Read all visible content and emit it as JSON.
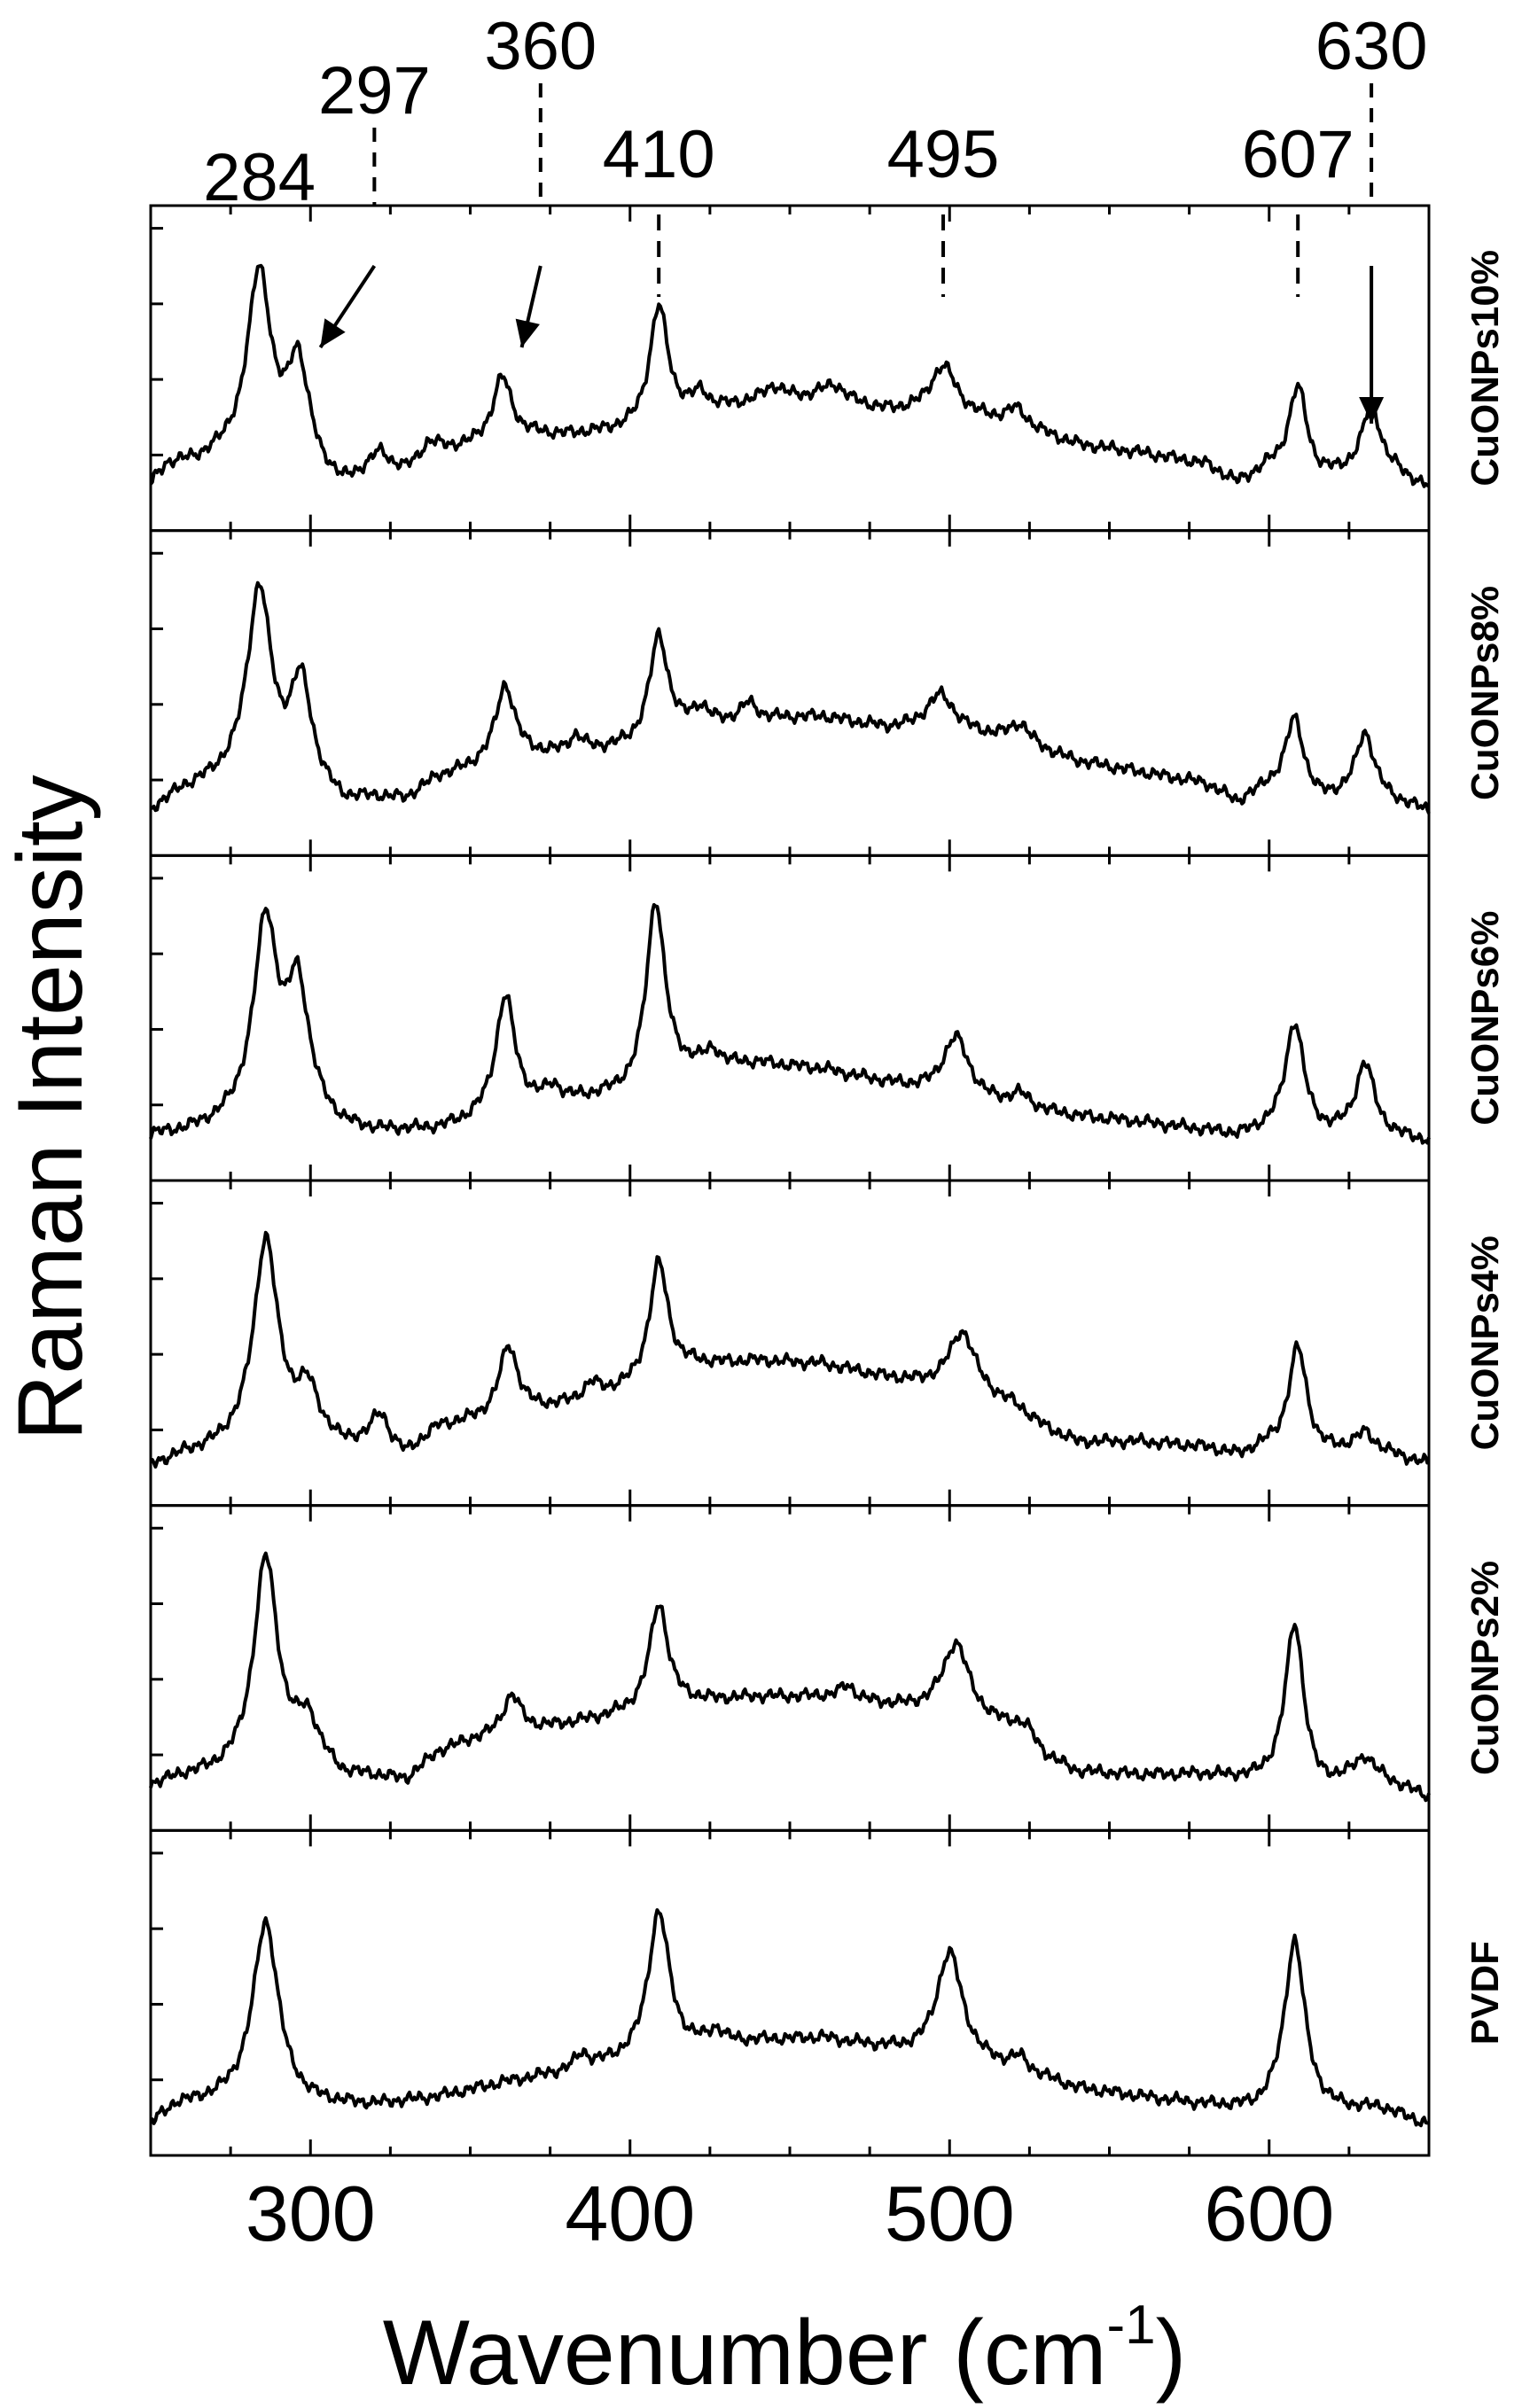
{
  "chart_data": {
    "type": "line",
    "title": "",
    "xlabel": "Wavenumber (cm",
    "xlabel_superscript": "-1",
    "xlabel_suffix": ")",
    "ylabel": "Raman Intensity",
    "xlim": [
      250,
      650
    ],
    "xticks": [
      300,
      400,
      500,
      600
    ],
    "xtick_labels": [
      "300",
      "400",
      "500",
      "600"
    ],
    "y_tick_labels_shown": false,
    "grid": false,
    "legend": "none",
    "line_color": "#000000",
    "peak_annotations": [
      {
        "label": "284",
        "x": 284,
        "marker": "none"
      },
      {
        "label": "297",
        "x": 320,
        "marker": "arrow",
        "arrow_to_x": 297
      },
      {
        "label": "360",
        "x": 372,
        "marker": "arrow",
        "arrow_to_x": 360
      },
      {
        "label": "410",
        "x": 409,
        "marker": "dashed"
      },
      {
        "label": "495",
        "x": 498,
        "marker": "dashed"
      },
      {
        "label": "607",
        "x": 609,
        "marker": "dashed"
      },
      {
        "label": "630",
        "x": 632,
        "marker": "arrow",
        "arrow_to_x": 632
      }
    ],
    "panels": [
      {
        "name": "CuONPs10%",
        "baseline": [
          [
            250,
            0.1
          ],
          [
            255,
            0.17
          ],
          [
            265,
            0.18
          ],
          [
            275,
            0.2
          ],
          [
            285,
            0.16
          ],
          [
            300,
            0.14
          ],
          [
            310,
            0.09
          ],
          [
            320,
            0.16
          ],
          [
            330,
            0.15
          ],
          [
            340,
            0.22
          ],
          [
            350,
            0.24
          ],
          [
            360,
            0.27
          ],
          [
            370,
            0.28
          ],
          [
            380,
            0.28
          ],
          [
            400,
            0.3
          ],
          [
            420,
            0.36
          ],
          [
            440,
            0.4
          ],
          [
            460,
            0.42
          ],
          [
            480,
            0.37
          ],
          [
            500,
            0.36
          ],
          [
            520,
            0.32
          ],
          [
            540,
            0.25
          ],
          [
            560,
            0.22
          ],
          [
            580,
            0.18
          ],
          [
            590,
            0.11
          ],
          [
            600,
            0.16
          ],
          [
            615,
            0.12
          ],
          [
            625,
            0.14
          ],
          [
            640,
            0.14
          ],
          [
            650,
            0.09
          ]
        ],
        "peaks": [
          {
            "x": 284,
            "height": 0.7,
            "width": 4.5
          },
          {
            "x": 296,
            "height": 0.38,
            "width": 4
          },
          {
            "x": 322,
            "height": 0.05,
            "width": 3
          },
          {
            "x": 337,
            "height": 0.05,
            "width": 3
          },
          {
            "x": 360,
            "height": 0.22,
            "width": 3.5
          },
          {
            "x": 409,
            "height": 0.42,
            "width": 3.5
          },
          {
            "x": 422,
            "height": 0.06,
            "width": 3
          },
          {
            "x": 445,
            "height": 0.05,
            "width": 4
          },
          {
            "x": 464,
            "height": 0.05,
            "width": 4
          },
          {
            "x": 498,
            "height": 0.17,
            "width": 5
          },
          {
            "x": 521,
            "height": 0.06,
            "width": 4
          },
          {
            "x": 609,
            "height": 0.32,
            "width": 3.5
          },
          {
            "x": 632,
            "height": 0.25,
            "width": 3.5
          }
        ]
      },
      {
        "name": "CuONPs8%",
        "baseline": [
          [
            250,
            0.1
          ],
          [
            260,
            0.17
          ],
          [
            270,
            0.2
          ],
          [
            280,
            0.22
          ],
          [
            300,
            0.18
          ],
          [
            310,
            0.12
          ],
          [
            320,
            0.14
          ],
          [
            330,
            0.14
          ],
          [
            340,
            0.22
          ],
          [
            350,
            0.25
          ],
          [
            360,
            0.3
          ],
          [
            380,
            0.3
          ],
          [
            400,
            0.33
          ],
          [
            420,
            0.4
          ],
          [
            440,
            0.43
          ],
          [
            460,
            0.44
          ],
          [
            480,
            0.4
          ],
          [
            500,
            0.4
          ],
          [
            520,
            0.35
          ],
          [
            540,
            0.28
          ],
          [
            560,
            0.24
          ],
          [
            580,
            0.2
          ],
          [
            590,
            0.13
          ],
          [
            600,
            0.18
          ],
          [
            615,
            0.13
          ],
          [
            630,
            0.16
          ],
          [
            650,
            0.1
          ]
        ],
        "peaks": [
          {
            "x": 284,
            "height": 0.68,
            "width": 4.5
          },
          {
            "x": 297,
            "height": 0.36,
            "width": 4
          },
          {
            "x": 361,
            "height": 0.25,
            "width": 3.5
          },
          {
            "x": 383,
            "height": 0.06,
            "width": 3
          },
          {
            "x": 409,
            "height": 0.37,
            "width": 3.5
          },
          {
            "x": 422,
            "height": 0.06,
            "width": 3
          },
          {
            "x": 437,
            "height": 0.06,
            "width": 3
          },
          {
            "x": 497,
            "height": 0.12,
            "width": 5
          },
          {
            "x": 522,
            "height": 0.07,
            "width": 4
          },
          {
            "x": 608,
            "height": 0.28,
            "width": 3.5
          },
          {
            "x": 630,
            "height": 0.22,
            "width": 3.5
          }
        ]
      },
      {
        "name": "CuONPs6%",
        "baseline": [
          [
            250,
            0.1
          ],
          [
            260,
            0.11
          ],
          [
            270,
            0.13
          ],
          [
            280,
            0.16
          ],
          [
            300,
            0.17
          ],
          [
            310,
            0.12
          ],
          [
            320,
            0.11
          ],
          [
            340,
            0.12
          ],
          [
            350,
            0.15
          ],
          [
            360,
            0.2
          ],
          [
            380,
            0.22
          ],
          [
            400,
            0.25
          ],
          [
            420,
            0.34
          ],
          [
            440,
            0.36
          ],
          [
            460,
            0.34
          ],
          [
            480,
            0.29
          ],
          [
            500,
            0.24
          ],
          [
            520,
            0.2
          ],
          [
            540,
            0.17
          ],
          [
            560,
            0.15
          ],
          [
            580,
            0.12
          ],
          [
            590,
            0.1
          ],
          [
            600,
            0.12
          ],
          [
            615,
            0.1
          ],
          [
            630,
            0.11
          ],
          [
            650,
            0.08
          ]
        ],
        "peaks": [
          {
            "x": 286,
            "height": 0.7,
            "width": 4.5
          },
          {
            "x": 296,
            "height": 0.44,
            "width": 4
          },
          {
            "x": 361,
            "height": 0.4,
            "width": 3.5
          },
          {
            "x": 376,
            "height": 0.05,
            "width": 3
          },
          {
            "x": 408,
            "height": 0.66,
            "width": 3.5
          },
          {
            "x": 426,
            "height": 0.05,
            "width": 3
          },
          {
            "x": 502,
            "height": 0.22,
            "width": 5
          },
          {
            "x": 522,
            "height": 0.05,
            "width": 4
          },
          {
            "x": 608,
            "height": 0.4,
            "width": 3.5
          },
          {
            "x": 630,
            "height": 0.25,
            "width": 3.5
          }
        ]
      },
      {
        "name": "CuONPs4%",
        "baseline": [
          [
            250,
            0.08
          ],
          [
            260,
            0.12
          ],
          [
            270,
            0.14
          ],
          [
            280,
            0.17
          ],
          [
            300,
            0.2
          ],
          [
            310,
            0.15
          ],
          [
            320,
            0.17
          ],
          [
            330,
            0.12
          ],
          [
            340,
            0.22
          ],
          [
            350,
            0.24
          ],
          [
            360,
            0.26
          ],
          [
            380,
            0.3
          ],
          [
            400,
            0.36
          ],
          [
            420,
            0.44
          ],
          [
            440,
            0.46
          ],
          [
            460,
            0.45
          ],
          [
            480,
            0.4
          ],
          [
            500,
            0.36
          ],
          [
            520,
            0.3
          ],
          [
            530,
            0.22
          ],
          [
            540,
            0.17
          ],
          [
            560,
            0.17
          ],
          [
            580,
            0.15
          ],
          [
            590,
            0.12
          ],
          [
            600,
            0.15
          ],
          [
            615,
            0.12
          ],
          [
            630,
            0.15
          ],
          [
            650,
            0.09
          ]
        ],
        "peaks": [
          {
            "x": 286,
            "height": 0.72,
            "width": 4.5
          },
          {
            "x": 299,
            "height": 0.14,
            "width": 4
          },
          {
            "x": 322,
            "height": 0.1,
            "width": 3
          },
          {
            "x": 362,
            "height": 0.25,
            "width": 3.5
          },
          {
            "x": 388,
            "height": 0.05,
            "width": 3
          },
          {
            "x": 409,
            "height": 0.42,
            "width": 3.5
          },
          {
            "x": 504,
            "height": 0.22,
            "width": 5
          },
          {
            "x": 609,
            "height": 0.38,
            "width": 3.5
          },
          {
            "x": 630,
            "height": 0.05,
            "width": 3.5
          }
        ]
      },
      {
        "name": "CuONPs2%",
        "baseline": [
          [
            250,
            0.1
          ],
          [
            260,
            0.13
          ],
          [
            270,
            0.14
          ],
          [
            280,
            0.16
          ],
          [
            300,
            0.2
          ],
          [
            310,
            0.13
          ],
          [
            320,
            0.13
          ],
          [
            330,
            0.12
          ],
          [
            340,
            0.22
          ],
          [
            350,
            0.26
          ],
          [
            360,
            0.28
          ],
          [
            380,
            0.32
          ],
          [
            400,
            0.36
          ],
          [
            420,
            0.4
          ],
          [
            440,
            0.42
          ],
          [
            460,
            0.42
          ],
          [
            480,
            0.39
          ],
          [
            500,
            0.36
          ],
          [
            520,
            0.3
          ],
          [
            530,
            0.2
          ],
          [
            540,
            0.15
          ],
          [
            560,
            0.14
          ],
          [
            580,
            0.14
          ],
          [
            595,
            0.12
          ],
          [
            605,
            0.12
          ],
          [
            615,
            0.08
          ],
          [
            630,
            0.15
          ],
          [
            650,
            0.06
          ]
        ],
        "peaks": [
          {
            "x": 286,
            "height": 0.75,
            "width": 4.5
          },
          {
            "x": 299,
            "height": 0.12,
            "width": 4
          },
          {
            "x": 363,
            "height": 0.14,
            "width": 3.5
          },
          {
            "x": 409,
            "height": 0.38,
            "width": 3.5
          },
          {
            "x": 468,
            "height": 0.05,
            "width": 3
          },
          {
            "x": 502,
            "height": 0.26,
            "width": 5
          },
          {
            "x": 524,
            "height": 0.05,
            "width": 4
          },
          {
            "x": 608,
            "height": 0.58,
            "width": 3.5
          },
          {
            "x": 630,
            "height": 0.05,
            "width": 3.5
          }
        ]
      },
      {
        "name": "PVDF",
        "baseline": [
          [
            250,
            0.05
          ],
          [
            258,
            0.12
          ],
          [
            268,
            0.13
          ],
          [
            280,
            0.14
          ],
          [
            300,
            0.12
          ],
          [
            320,
            0.12
          ],
          [
            340,
            0.15
          ],
          [
            360,
            0.2
          ],
          [
            380,
            0.24
          ],
          [
            400,
            0.28
          ],
          [
            420,
            0.32
          ],
          [
            440,
            0.35
          ],
          [
            460,
            0.36
          ],
          [
            480,
            0.32
          ],
          [
            500,
            0.27
          ],
          [
            520,
            0.25
          ],
          [
            540,
            0.18
          ],
          [
            560,
            0.15
          ],
          [
            580,
            0.12
          ],
          [
            595,
            0.1
          ],
          [
            605,
            0.12
          ],
          [
            620,
            0.1
          ],
          [
            635,
            0.11
          ],
          [
            650,
            0.05
          ]
        ],
        "peaks": [
          {
            "x": 286,
            "height": 0.65,
            "width": 4.8
          },
          {
            "x": 385,
            "height": 0.05,
            "width": 2.5
          },
          {
            "x": 409,
            "height": 0.52,
            "width": 4
          },
          {
            "x": 427,
            "height": 0.05,
            "width": 3
          },
          {
            "x": 500,
            "height": 0.4,
            "width": 5
          },
          {
            "x": 522,
            "height": 0.04,
            "width": 3
          },
          {
            "x": 608,
            "height": 0.6,
            "width": 3.8
          }
        ]
      }
    ]
  }
}
